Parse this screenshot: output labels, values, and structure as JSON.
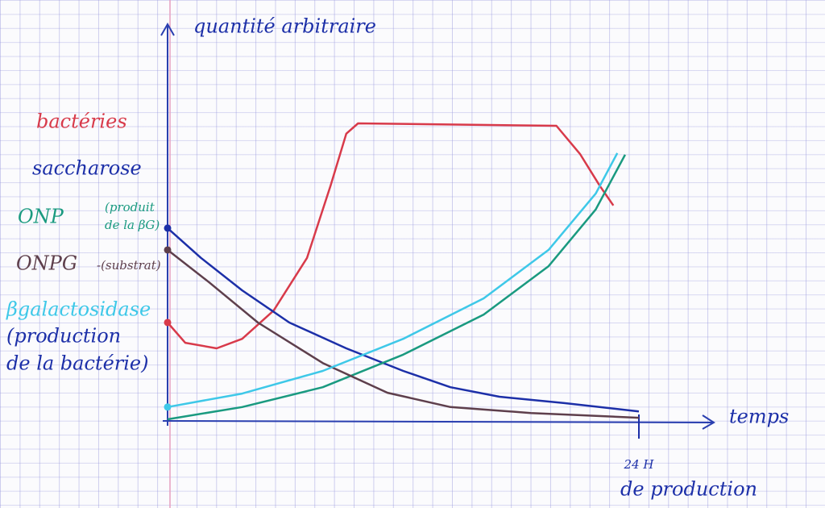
{
  "chart_data": {
    "type": "line",
    "y_label": "quantité arbitraire",
    "x_label": "temps",
    "xlim": [
      0,
      24
    ],
    "ylim": [
      0,
      100
    ],
    "xticks": [
      {
        "value": 24,
        "label": "24 H"
      }
    ],
    "x_note": "de production",
    "annotations": [
      "(produit",
      "de la βG)",
      "-(substrat)",
      "(production",
      "de la bactérie)"
    ],
    "series": [
      {
        "name": "bactéries",
        "color": "#d83a4a",
        "x": [
          0,
          0.9,
          2.5,
          3.8,
          5.4,
          7.1,
          8.3,
          9.1,
          9.7,
          19.8,
          21.0,
          22.0,
          22.7
        ],
        "values": [
          24.8,
          19.7,
          18.3,
          20.7,
          27.8,
          41.1,
          59.3,
          72.4,
          75.0,
          74.4,
          67.3,
          59.3,
          54.3
        ]
      },
      {
        "name": "saccharose",
        "color": "#1c2fa8",
        "x": [
          0,
          1.7,
          3.8,
          6.2,
          9.1,
          12.0,
          14.4,
          16.9,
          20.2,
          24
        ],
        "values": [
          48.6,
          41.1,
          32.9,
          24.8,
          18.3,
          12.6,
          8.5,
          6.1,
          4.5,
          2.4
        ]
      },
      {
        "name": "ONP",
        "color": "#1a9a80",
        "x": [
          0,
          3.8,
          7.9,
          12.0,
          16.1,
          19.4,
          21.8,
          23.3
        ],
        "values": [
          0.4,
          3.5,
          8.5,
          16.7,
          26.8,
          39.0,
          53.3,
          67.1
        ]
      },
      {
        "name": "ONPG",
        "color": "#5e3f4c",
        "x": [
          0,
          2.1,
          4.6,
          7.9,
          11.2,
          14.4,
          18.5,
          24
        ],
        "values": [
          43.1,
          35.0,
          24.8,
          14.6,
          7.1,
          3.5,
          2.0,
          0.8
        ]
      },
      {
        "name": "βgalactosidase",
        "color": "#3ec8e8",
        "x": [
          0,
          3.8,
          7.9,
          12.0,
          16.1,
          19.4,
          21.8,
          22.9
        ],
        "values": [
          3.5,
          6.9,
          12.6,
          20.7,
          30.9,
          43.1,
          57.3,
          67.5
        ]
      }
    ]
  }
}
